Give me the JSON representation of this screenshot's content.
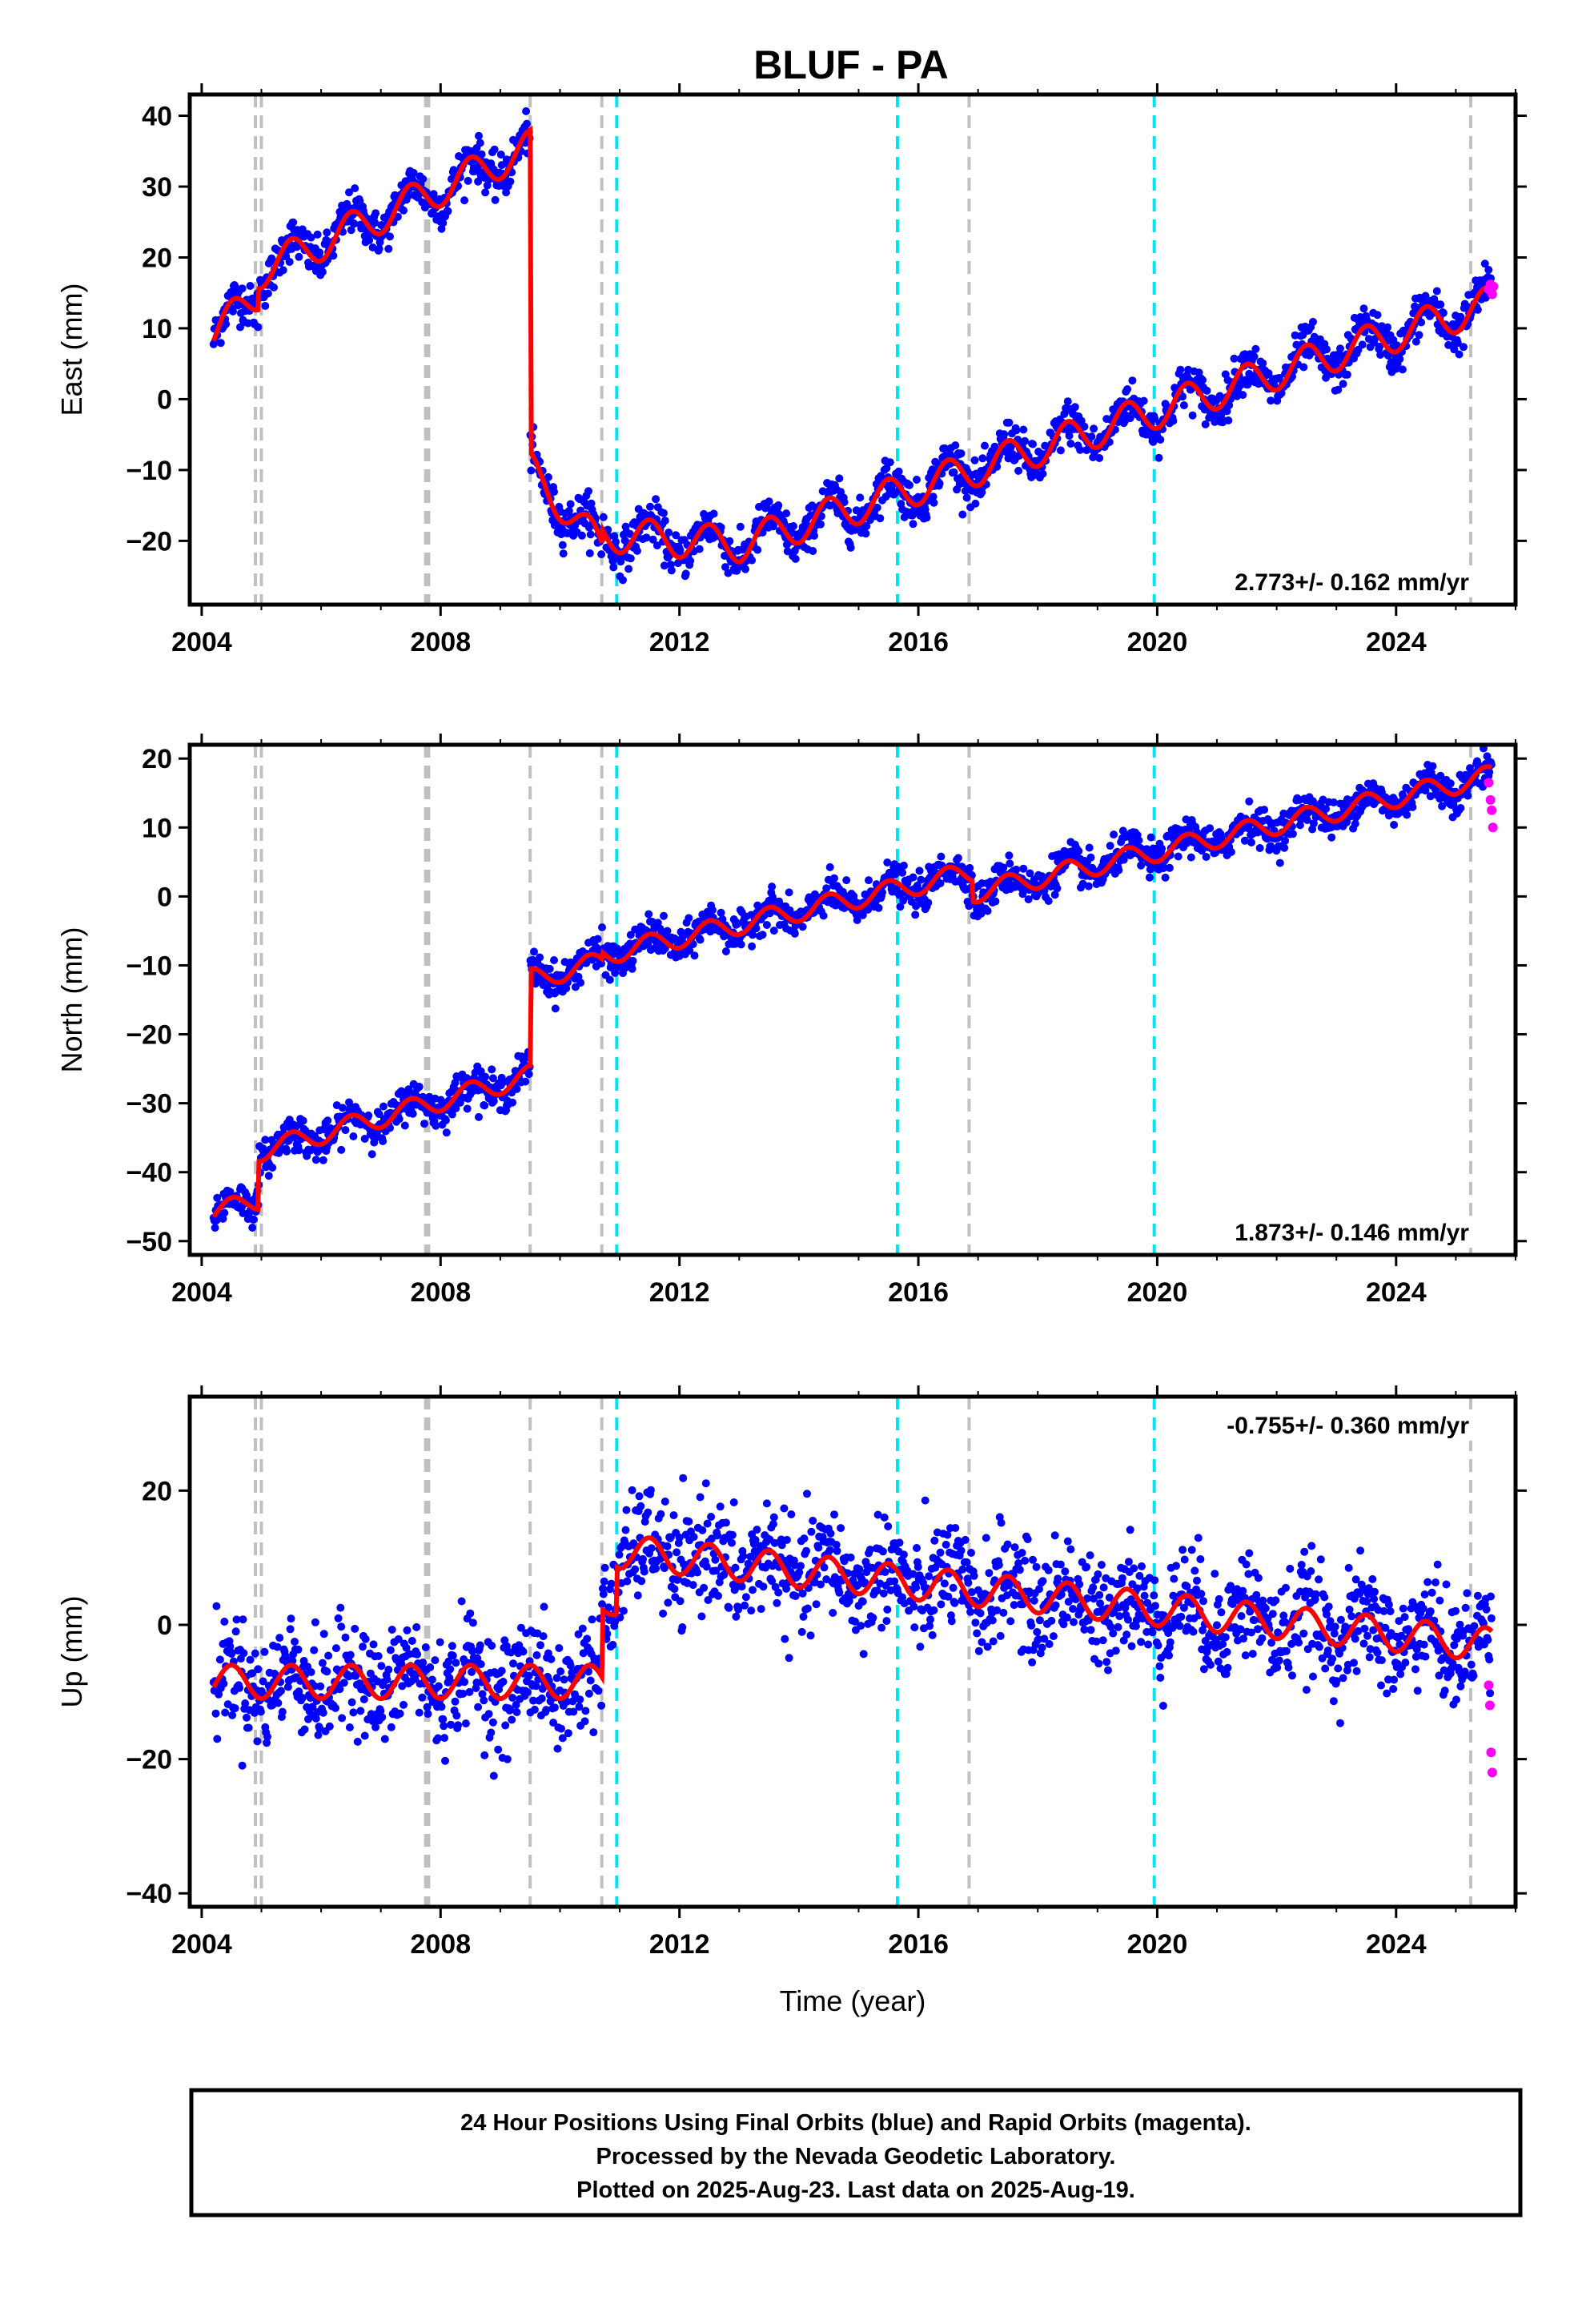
{
  "title": "BLUF - PA",
  "colors": {
    "final_orbits": "#0000ff",
    "rapid_orbits": "#ff00ff",
    "model": "#ff0000",
    "equipment_change": "#c0c0c0",
    "earthquake": "#00e5ee",
    "text": "#000000"
  },
  "chart_data": [
    {
      "type": "scatter",
      "component": "east",
      "ylabel": "East (mm)",
      "xlabel": "",
      "xlim": [
        2003.8,
        2026.0
      ],
      "ylim": [
        -29,
        43
      ],
      "xticks": [
        2004,
        2008,
        2012,
        2016,
        2020,
        2024
      ],
      "yticks": [
        -20,
        -10,
        0,
        10,
        20,
        30,
        40
      ],
      "rate_label": "2.773+/- 0.162 mm/yr",
      "rate_position": "bottom-right",
      "trend_segments": [
        {
          "x0": 2004.2,
          "x1": 2004.95,
          "y0": 9.0,
          "y1": 15.0
        },
        {
          "x0": 2004.95,
          "x1": 2009.5,
          "y0": 18.0,
          "y1": 35.5
        },
        {
          "x0": 2009.5,
          "x1": 2010.7,
          "y0": -10.0,
          "y1": -21.0
        },
        {
          "x0": 2010.7,
          "x1": 2013.0,
          "y0": -19.0,
          "y1": -20.5
        },
        {
          "x0": 2013.0,
          "x1": 2025.6,
          "y0": -20.5,
          "y1": 13.5
        }
      ],
      "seasonal_amplitude": 2.5,
      "scatter_noise": 1.5,
      "jumps": [
        {
          "x": 2009.5,
          "from": 35.5,
          "to": -10.0
        }
      ],
      "rapid_points": [
        [
          2025.55,
          15.5
        ],
        [
          2025.58,
          16.2
        ],
        [
          2025.61,
          14.8
        ],
        [
          2025.63,
          15.9
        ]
      ]
    },
    {
      "type": "scatter",
      "component": "north",
      "ylabel": "North (mm)",
      "xlabel": "",
      "xlim": [
        2003.8,
        2026.0
      ],
      "ylim": [
        -52,
        22
      ],
      "xticks": [
        2004,
        2008,
        2012,
        2016,
        2020,
        2024
      ],
      "yticks": [
        -50,
        -40,
        -30,
        -20,
        -10,
        0,
        10,
        20
      ],
      "rate_label": "1.873+/- 0.146 mm/yr",
      "rate_position": "bottom-right",
      "trend_segments": [
        {
          "x0": 2004.2,
          "x1": 2004.95,
          "y0": -46.0,
          "y1": -44.0
        },
        {
          "x0": 2004.95,
          "x1": 2009.5,
          "y0": -37.0,
          "y1": -26.0
        },
        {
          "x0": 2009.5,
          "x1": 2010.7,
          "y0": -12.0,
          "y1": -9.5
        },
        {
          "x0": 2010.7,
          "x1": 2016.9,
          "y0": -8.5,
          "y1": 3.5
        },
        {
          "x0": 2016.9,
          "x1": 2025.6,
          "y0": 0.5,
          "y1": 17.5
        }
      ],
      "seasonal_amplitude": 1.5,
      "scatter_noise": 1.3,
      "jumps": [],
      "rapid_points": [
        [
          2025.55,
          16.5
        ],
        [
          2025.58,
          14.0
        ],
        [
          2025.6,
          12.5
        ],
        [
          2025.62,
          10.0
        ]
      ]
    },
    {
      "type": "scatter",
      "component": "up",
      "ylabel": "Up (mm)",
      "xlabel": "Time (year)",
      "xlim": [
        2003.8,
        2026.0
      ],
      "ylim": [
        -42,
        34
      ],
      "xticks": [
        2004,
        2008,
        2012,
        2016,
        2020,
        2024
      ],
      "yticks": [
        -40,
        -20,
        0,
        20
      ],
      "rate_label": "-0.755+/- 0.360 mm/yr",
      "rate_position": "top-right",
      "trend_segments": [
        {
          "x0": 2004.2,
          "x1": 2010.7,
          "y0": -8.5,
          "y1": -8.5
        },
        {
          "x0": 2010.7,
          "x1": 2010.95,
          "y0": 1.5,
          "y1": 4.0
        },
        {
          "x0": 2010.95,
          "x1": 2025.6,
          "y0": 11.0,
          "y1": -3.0
        }
      ],
      "seasonal_amplitude": 2.5,
      "scatter_noise": 4.0,
      "jumps": [],
      "rapid_points": [
        [
          2025.55,
          -9.0
        ],
        [
          2025.57,
          -12.0
        ],
        [
          2025.59,
          -19.0
        ],
        [
          2025.61,
          -22.0
        ]
      ]
    }
  ],
  "event_lines": {
    "equipment_change": [
      2004.9,
      2005.0,
      2007.75,
      2007.8,
      2009.5,
      2010.7,
      2016.85,
      2025.25
    ],
    "earthquake": [
      2010.95,
      2015.65,
      2019.95
    ]
  },
  "footer": {
    "line1": "24 Hour Positions Using Final Orbits (blue) and Rapid Orbits (magenta).",
    "line2": "Processed by the Nevada Geodetic Laboratory.",
    "line3": "Plotted on 2025-Aug-23. Last data on 2025-Aug-19."
  }
}
